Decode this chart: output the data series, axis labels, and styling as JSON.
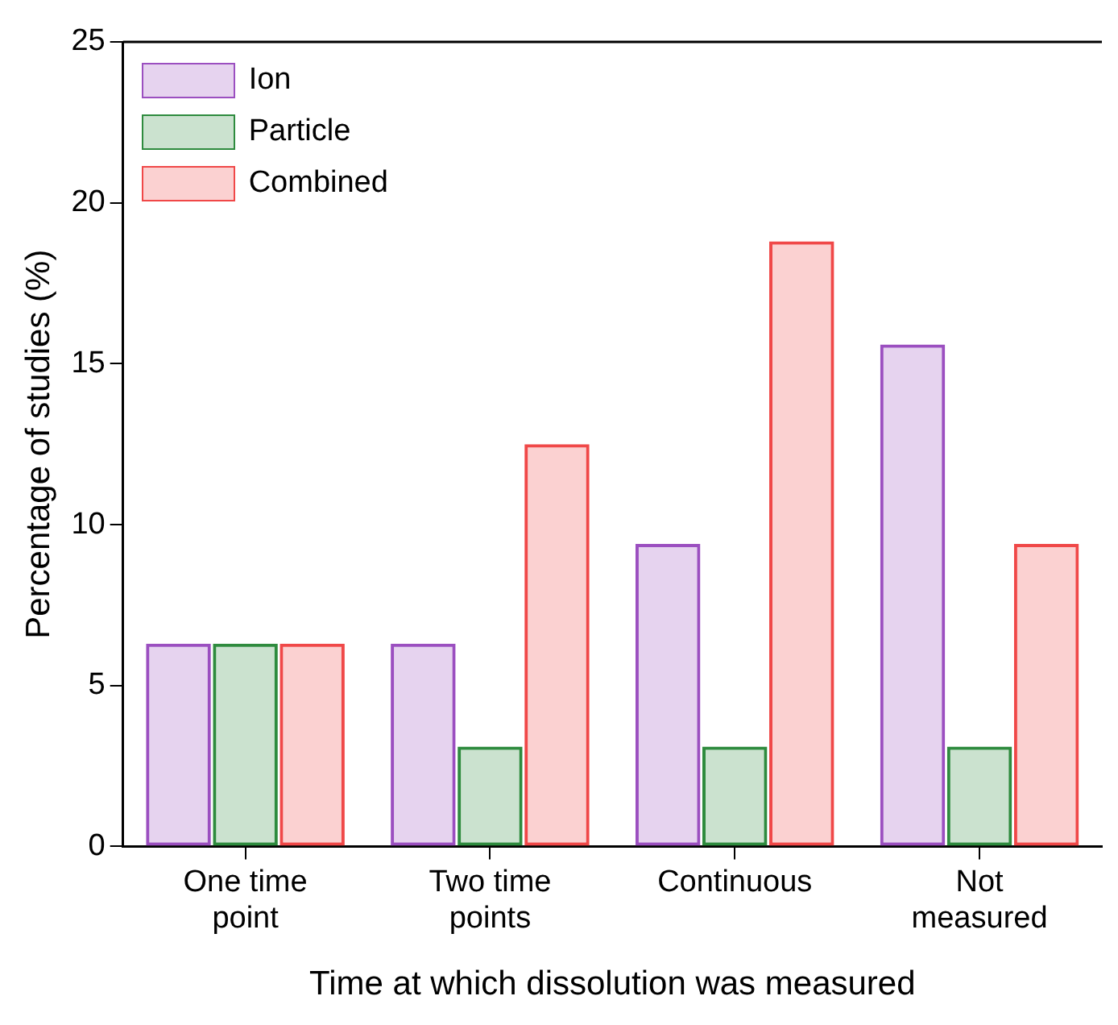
{
  "chart_data": {
    "type": "bar",
    "xlabel": "Time at which dissolution was measured",
    "ylabel": "Percentage of studies (%)",
    "categories": [
      "One time point",
      "Two time points",
      "Continuous",
      "Not measured"
    ],
    "series": [
      {
        "name": "Ion",
        "color": "#9b4fc0",
        "values": [
          6.3,
          6.3,
          9.4,
          15.6
        ]
      },
      {
        "name": "Particle",
        "color": "#2e8b3e",
        "values": [
          6.3,
          3.1,
          3.1,
          3.1
        ]
      },
      {
        "name": "Combined",
        "color": "#f04848",
        "values": [
          6.3,
          12.5,
          18.8,
          9.4
        ]
      }
    ],
    "ylim": [
      0,
      25
    ],
    "yticks": [
      0,
      5,
      10,
      15,
      20,
      25
    ],
    "grid": false,
    "legend": "top left"
  }
}
